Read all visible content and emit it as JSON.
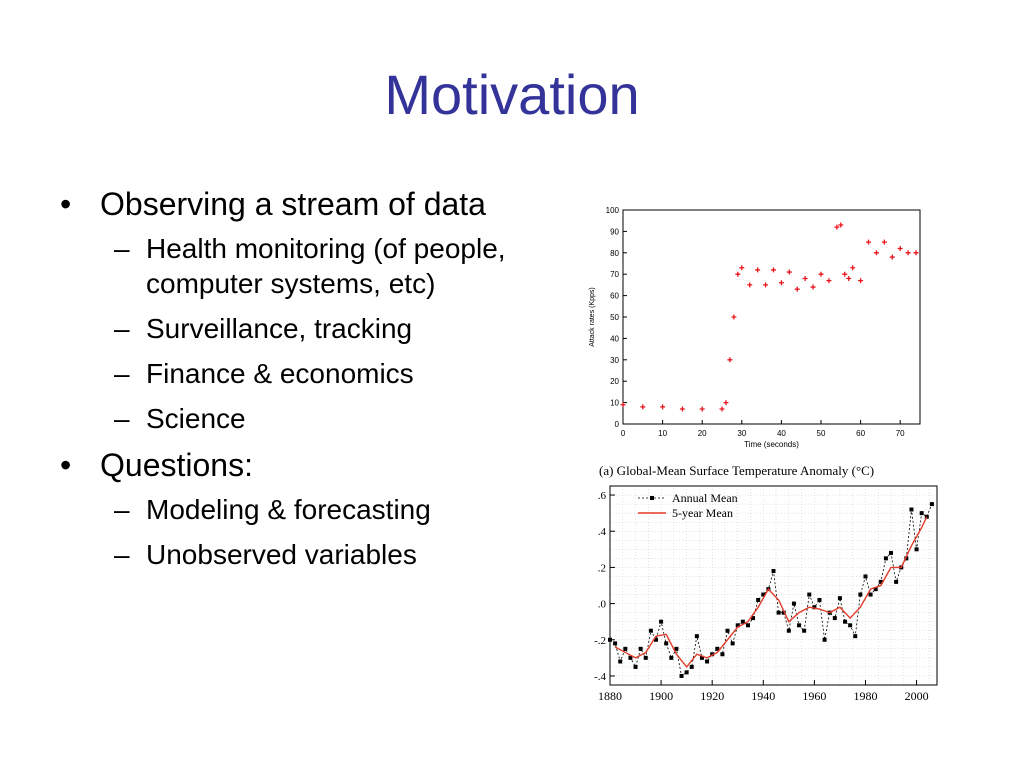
{
  "slide": {
    "title": "Motivation",
    "bullets": [
      {
        "text": "Observing a stream of data",
        "marker": "•",
        "subitems": [
          {
            "marker": "–",
            "text": "Health monitoring (of people, computer systems, etc)"
          },
          {
            "marker": "–",
            "text": "Surveillance, tracking"
          },
          {
            "marker": "–",
            "text": "Finance & economics"
          },
          {
            "marker": "–",
            "text": "Science"
          }
        ]
      },
      {
        "text": "Questions:",
        "marker": "•",
        "subitems": [
          {
            "marker": "–",
            "text": "Modeling & forecasting"
          },
          {
            "marker": "–",
            "text": "Unobserved variables"
          }
        ]
      }
    ],
    "colors": {
      "title": "#33339a",
      "text": "#000000"
    }
  },
  "chart_data": [
    {
      "type": "scatter",
      "title": "",
      "xlabel": "Time (seconds)",
      "ylabel": "Attack rates (Kpps)",
      "xlim": [
        0,
        75
      ],
      "ylim": [
        0,
        100
      ],
      "xticks": [
        0,
        10,
        20,
        30,
        40,
        50,
        60,
        70
      ],
      "yticks": [
        0,
        10,
        20,
        30,
        40,
        50,
        60,
        70,
        80,
        90,
        100
      ],
      "grid": false,
      "marker": "+",
      "color": "#e8141b",
      "x": [
        0,
        5,
        10,
        15,
        20,
        25,
        26,
        27,
        28,
        29,
        30,
        32,
        34,
        36,
        38,
        40,
        42,
        44,
        46,
        48,
        50,
        52,
        54,
        55,
        56,
        57,
        58,
        60,
        62,
        64,
        66,
        68,
        70,
        72,
        74
      ],
      "y": [
        9,
        8,
        8,
        7,
        7,
        7,
        10,
        30,
        50,
        70,
        73,
        65,
        72,
        65,
        72,
        66,
        71,
        63,
        68,
        64,
        70,
        67,
        92,
        93,
        70,
        68,
        73,
        67,
        85,
        80,
        85,
        78,
        82,
        80,
        80
      ]
    },
    {
      "type": "line",
      "title": "(a)  Global-Mean Surface Temperature Anomaly (°C)",
      "xlabel": "",
      "ylabel": "",
      "xlim": [
        1880,
        2008
      ],
      "ylim": [
        -0.45,
        0.65
      ],
      "xticks": [
        1880,
        1900,
        1920,
        1940,
        1960,
        1980,
        2000
      ],
      "yticks": [
        -0.4,
        -0.2,
        0.0,
        0.2,
        0.4,
        0.6
      ],
      "ytick_labels": [
        "-.4",
        "-.2",
        ".0",
        ".2",
        ".4",
        ".6"
      ],
      "grid": true,
      "legend_position": "top-left",
      "series": [
        {
          "name": "Annual Mean",
          "color": "#000000",
          "style": "dashed-with-square-markers",
          "x": [
            1880,
            1882,
            1884,
            1886,
            1888,
            1890,
            1892,
            1894,
            1896,
            1898,
            1900,
            1902,
            1904,
            1906,
            1908,
            1910,
            1912,
            1914,
            1916,
            1918,
            1920,
            1922,
            1924,
            1926,
            1928,
            1930,
            1932,
            1934,
            1936,
            1938,
            1940,
            1942,
            1944,
            1946,
            1948,
            1950,
            1952,
            1954,
            1956,
            1958,
            1960,
            1962,
            1964,
            1966,
            1968,
            1970,
            1972,
            1974,
            1976,
            1978,
            1980,
            1982,
            1984,
            1986,
            1988,
            1990,
            1992,
            1994,
            1996,
            1998,
            2000,
            2002,
            2004,
            2006
          ],
          "y": [
            -0.2,
            -0.22,
            -0.32,
            -0.25,
            -0.3,
            -0.35,
            -0.25,
            -0.3,
            -0.15,
            -0.2,
            -0.1,
            -0.22,
            -0.3,
            -0.25,
            -0.4,
            -0.38,
            -0.35,
            -0.18,
            -0.3,
            -0.32,
            -0.28,
            -0.25,
            -0.28,
            -0.15,
            -0.22,
            -0.12,
            -0.1,
            -0.12,
            -0.08,
            0.02,
            0.05,
            0.08,
            0.18,
            -0.05,
            -0.05,
            -0.15,
            0.0,
            -0.12,
            -0.15,
            0.05,
            -0.02,
            0.02,
            -0.2,
            -0.05,
            -0.08,
            0.03,
            -0.1,
            -0.12,
            -0.18,
            0.05,
            0.15,
            0.05,
            0.08,
            0.12,
            0.25,
            0.28,
            0.12,
            0.2,
            0.25,
            0.52,
            0.3,
            0.5,
            0.48,
            0.55
          ]
        },
        {
          "name": "5-year Mean",
          "color": "#e23b2a",
          "style": "solid",
          "x": [
            1882,
            1886,
            1890,
            1894,
            1898,
            1902,
            1906,
            1910,
            1914,
            1918,
            1922,
            1926,
            1930,
            1934,
            1938,
            1942,
            1946,
            1950,
            1954,
            1958,
            1962,
            1966,
            1970,
            1974,
            1978,
            1982,
            1986,
            1990,
            1994,
            1998,
            2002,
            2004
          ],
          "y": [
            -0.24,
            -0.27,
            -0.3,
            -0.27,
            -0.18,
            -0.17,
            -0.28,
            -0.35,
            -0.28,
            -0.3,
            -0.27,
            -0.2,
            -0.13,
            -0.1,
            -0.02,
            0.08,
            0.02,
            -0.1,
            -0.05,
            -0.02,
            -0.03,
            -0.05,
            -0.02,
            -0.08,
            -0.02,
            0.08,
            0.1,
            0.2,
            0.2,
            0.32,
            0.42,
            0.48
          ]
        }
      ]
    }
  ]
}
